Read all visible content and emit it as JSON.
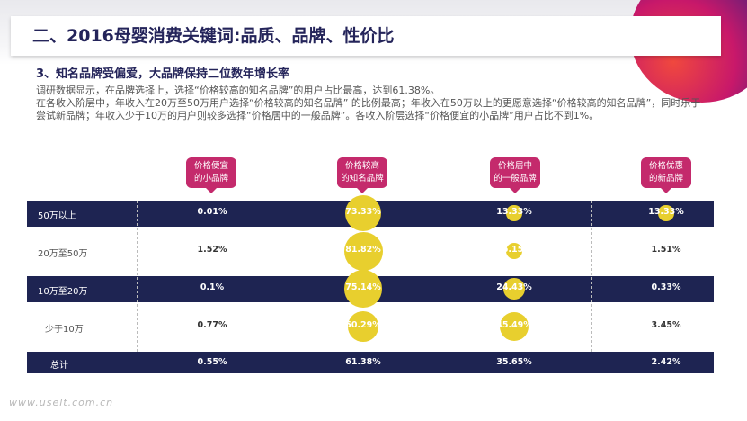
{
  "header": {
    "title": "二、2016母婴消费关键词:品质、品牌、性价比"
  },
  "section": {
    "subtitle": "3、知名品牌受偏爱，大品牌保持二位数年增长率"
  },
  "paragraphs": [
    "调研数据显示，在品牌选择上，选择“价格较高的知名品牌”的用户占比最高，达到61.38%。",
    "在各收入阶层中，年收入在20万至50万用户选择“价格较高的知名品牌” 的比例最高；年收入在50万以上的更愿意选择“价格较高的知名品牌”，同时乐于尝试新品牌；年收入少于10万的用户则较多选择“价格居中的一般品牌”。各收入阶层选择“价格便宜的小品牌”用户占比不到1%。"
  ],
  "table": {
    "columns": [
      {
        "line1": "价格便宜",
        "line2": "的小品牌"
      },
      {
        "line1": "价格较高",
        "line2": "的知名品牌"
      },
      {
        "line1": "价格居中",
        "line2": "的一般品牌"
      },
      {
        "line1": "价格优惠",
        "line2": "的新品牌"
      }
    ],
    "rows": [
      {
        "label": "50万以上",
        "values": [
          "0.01%",
          "73.33%",
          "13.33%",
          "13.33%"
        ],
        "pct": [
          0.01,
          73.33,
          13.33,
          13.33
        ]
      },
      {
        "label": "20万至50万",
        "values": [
          "1.52%",
          "81.82%",
          "15.15%",
          "1.51%"
        ],
        "pct": [
          1.52,
          81.82,
          15.15,
          1.51
        ]
      },
      {
        "label": "10万至20万",
        "values": [
          "0.1%",
          "75.14%",
          "24.43%",
          "0.33%"
        ],
        "pct": [
          0.1,
          75.14,
          24.43,
          0.33
        ]
      },
      {
        "label": "少于10万",
        "values": [
          "0.77%",
          "50.29%",
          "45.49%",
          "3.45%"
        ],
        "pct": [
          0.77,
          50.29,
          45.49,
          3.45
        ]
      }
    ],
    "total": {
      "label": "总计",
      "values": [
        "0.55%",
        "61.38%",
        "35.65%",
        "2.42%"
      ]
    }
  },
  "colors": {
    "navy": "#1e2452",
    "magenta": "#c42a6c",
    "bubble": "#e8cf2e"
  },
  "watermark": "www.uselt.com.cn"
}
